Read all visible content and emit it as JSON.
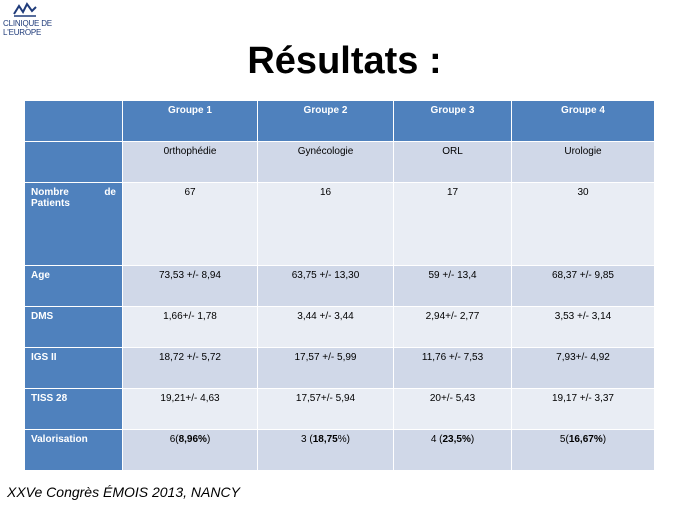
{
  "logo": {
    "line1": "CLINIQUE DE",
    "line2": "L'EUROPE"
  },
  "title": "Résultats :",
  "table": {
    "header": [
      "Groupe 1",
      "Groupe 2",
      "Groupe 3",
      "Groupe 4"
    ],
    "rows": [
      {
        "label": "",
        "values": [
          "0rthophédie",
          "Gynécologie",
          "ORL",
          "Urologie"
        ]
      },
      {
        "label_left": "Nombre",
        "label_right": "de",
        "label_line2": "Patients",
        "values": [
          "67",
          "16",
          "17",
          "30"
        ]
      },
      {
        "label": "Age",
        "values": [
          "73,53 +/- 8,94",
          "63,75 +/- 13,30",
          "59 +/- 13,4",
          "68,37 +/- 9,85"
        ]
      },
      {
        "label": "DMS",
        "values": [
          "1,66+/- 1,78",
          "3,44 +/- 3,44",
          "2,94+/- 2,77",
          "3,53 +/- 3,14"
        ]
      },
      {
        "label": "IGS II",
        "values": [
          "18,72 +/- 5,72",
          "17,57 +/- 5,99",
          "11,76 +/- 7,53",
          "7,93+/- 4,92"
        ]
      },
      {
        "label": "TISS 28",
        "values": [
          "19,21+/- 4,63",
          "17,57+/- 5,94",
          "20+/- 5,43",
          "19,17 +/- 3,37"
        ]
      },
      {
        "label": "Valorisation",
        "values": [
          {
            "pre": "6(",
            "bold": "8,96%",
            "post": ")"
          },
          {
            "pre": "3 (",
            "bold": "18,75",
            "post": "%)"
          },
          {
            "pre": "4 (",
            "bold": "23,5%",
            "post": ")"
          },
          {
            "pre": "5(",
            "bold": "16,67%",
            "post": ")"
          }
        ]
      }
    ]
  },
  "footer": "XXVe Congrès ÉMOIS 2013, NANCY",
  "colors": {
    "header_blue": "#4f81bd",
    "band_dark": "#d0d8e8",
    "band_light": "#e9edf4"
  }
}
